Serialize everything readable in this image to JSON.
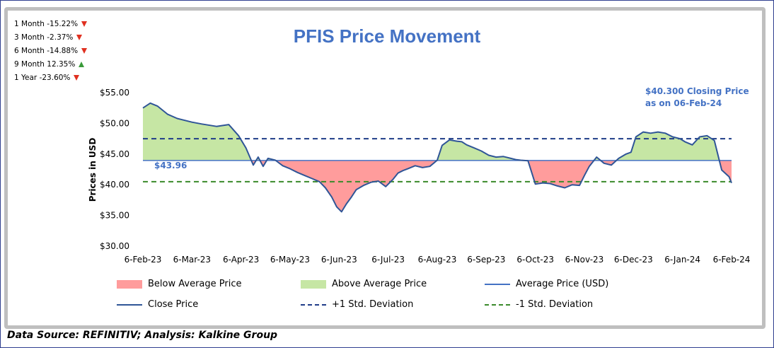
{
  "performance": [
    {
      "label": "1 Month -15.22%",
      "direction": "down"
    },
    {
      "label": "3 Month -2.37%",
      "direction": "down"
    },
    {
      "label": "6 Month -14.88%",
      "direction": "down"
    },
    {
      "label": "9 Month 12.35%",
      "direction": "up"
    },
    {
      "label": "1 Year -23.60%",
      "direction": "down"
    }
  ],
  "source": "Data Source: REFINITIV; Analysis: Kalkine Group",
  "colors": {
    "title": "#4472c4",
    "below": "#ff9c9c",
    "above": "#c6e6a4",
    "average": "#4472c4",
    "close": "#2f5597",
    "plus_sd": "#1f3c88",
    "minus_sd": "#3a8a2a",
    "annotation": "#4472c4"
  },
  "chart_data": {
    "type": "area",
    "title": "PFIS Price Movement",
    "ylabel": "Prices in USD",
    "xlabel": "",
    "ylim": [
      30,
      55
    ],
    "yticks": [
      "$30.00",
      "$35.00",
      "$40.00",
      "$45.00",
      "$50.00",
      "$55.00"
    ],
    "ytick_values": [
      30,
      35,
      40,
      45,
      50,
      55
    ],
    "xticks": [
      "6-Feb-23",
      "6-Mar-23",
      "6-Apr-23",
      "6-May-23",
      "6-Jun-23",
      "6-Jul-23",
      "6-Aug-23",
      "6-Sep-23",
      "6-Oct-23",
      "6-Nov-23",
      "6-Dec-23",
      "6-Jan-24",
      "6-Feb-24"
    ],
    "average": 43.96,
    "average_label": "$43.96",
    "plus_one_sd": 47.5,
    "minus_one_sd": 40.5,
    "annotation": [
      "$40.300 Closing Price",
      "as on 06-Feb-24"
    ],
    "series": [
      {
        "name": "Close Price",
        "x": [
          0,
          0.15,
          0.3,
          0.5,
          0.7,
          1.0,
          1.2,
          1.5,
          1.75,
          1.95,
          2.1,
          2.25,
          2.35,
          2.45,
          2.55,
          2.7,
          2.85,
          3.0,
          3.15,
          3.3,
          3.45,
          3.6,
          3.72,
          3.85,
          3.95,
          4.05,
          4.15,
          4.25,
          4.35,
          4.5,
          4.65,
          4.8,
          4.95,
          5.1,
          5.2,
          5.3,
          5.4,
          5.55,
          5.7,
          5.85,
          6.0,
          6.1,
          6.25,
          6.4,
          6.5,
          6.6,
          6.75,
          6.9,
          7.05,
          7.2,
          7.35,
          7.5,
          7.6,
          7.7,
          7.85,
          8.0,
          8.15,
          8.3,
          8.45,
          8.6,
          8.75,
          8.9,
          9.0,
          9.1,
          9.25,
          9.4,
          9.55,
          9.7,
          9.85,
          9.95,
          10.05,
          10.2,
          10.35,
          10.5,
          10.65,
          10.8,
          10.95,
          11.05,
          11.2,
          11.35,
          11.5,
          11.65,
          11.8,
          11.95,
          12.0
        ],
        "values": [
          52.5,
          53.3,
          52.8,
          51.5,
          50.8,
          50.2,
          49.9,
          49.5,
          49.8,
          48.0,
          46.0,
          43.2,
          44.5,
          43.0,
          44.3,
          44.0,
          43.1,
          42.6,
          42.0,
          41.5,
          41.0,
          40.5,
          39.5,
          38.0,
          36.4,
          35.6,
          36.9,
          38.0,
          39.2,
          39.9,
          40.4,
          40.6,
          39.7,
          40.9,
          41.9,
          42.3,
          42.6,
          43.1,
          42.8,
          43.0,
          44.0,
          46.4,
          47.3,
          47.1,
          47.0,
          46.5,
          46.0,
          45.5,
          44.8,
          44.5,
          44.6,
          44.3,
          44.1,
          44.0,
          43.9,
          40.1,
          40.3,
          40.2,
          39.8,
          39.5,
          40.0,
          39.9,
          41.5,
          43.0,
          44.5,
          43.5,
          43.2,
          44.3,
          45.0,
          45.3,
          47.8,
          48.6,
          48.4,
          48.6,
          48.4,
          47.8,
          47.5,
          47.0,
          46.5,
          47.8,
          48.0,
          47.2,
          42.4,
          41.3,
          40.3
        ]
      },
      {
        "name": "Average Price (USD)",
        "values": [
          43.96
        ]
      }
    ],
    "legend": [
      "Below Average Price",
      "Above Average Price",
      "Average Price (USD)",
      "Close Price",
      "+1 Std. Deviation",
      "-1 Std. Deviation"
    ]
  }
}
